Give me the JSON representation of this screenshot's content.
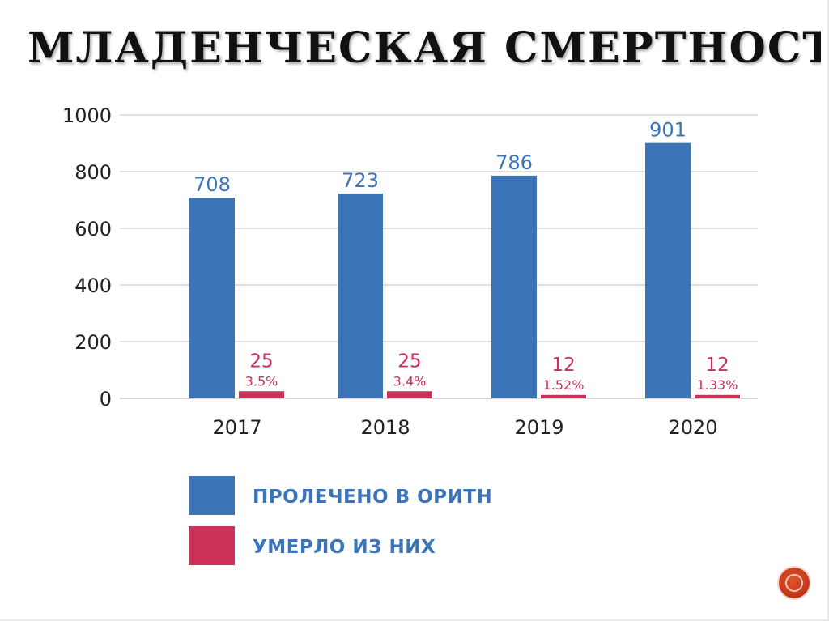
{
  "title": "МЛАДЕНЧЕСКАЯ СМЕРТНОСТЬ ВПЦ",
  "colors": {
    "treated": "#3c74b8",
    "died": "#cc3159",
    "grid": "#cccccc",
    "tick_text": "#222222",
    "legend_text": "#3c74b8"
  },
  "chart_data": {
    "type": "bar",
    "categories": [
      "2017",
      "2018",
      "2019",
      "2020"
    ],
    "series": [
      {
        "name": "ПРОЛЕЧЕНО В ОРИТН",
        "values": [
          708,
          723,
          786,
          901
        ],
        "labels": [
          "708",
          "723",
          "786",
          "901"
        ]
      },
      {
        "name": "УМЕРЛО ИЗ НИХ",
        "values": [
          25,
          25,
          12,
          12
        ],
        "labels": [
          "25",
          "25",
          "12",
          "12"
        ],
        "percent_labels": [
          "3.5%",
          "3.4%",
          "1.52%",
          "1.33%"
        ]
      }
    ],
    "yticks": [
      "0",
      "200",
      "400",
      "600",
      "800",
      "1000"
    ],
    "ylim": [
      0,
      1000
    ],
    "grid": true,
    "legend_position": "bottom-center"
  },
  "nav": {
    "icon": "next-slide-icon"
  }
}
